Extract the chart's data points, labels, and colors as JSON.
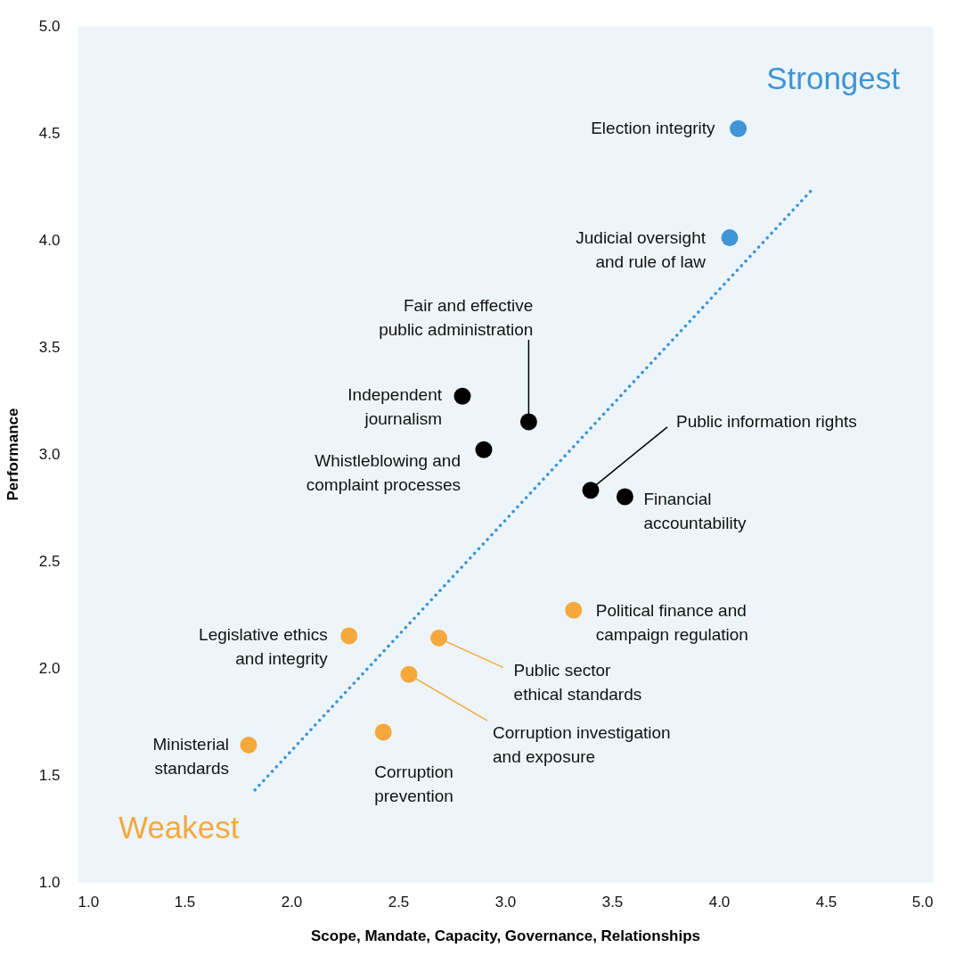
{
  "chart_data": {
    "type": "scatter",
    "xlabel": "Scope, Mandate, Capacity, Governance, Relationships",
    "ylabel": "Performance",
    "xlim": [
      1,
      5
    ],
    "ylim": [
      1,
      5
    ],
    "xticks": [
      {
        "value": 1,
        "label": "1.0"
      },
      {
        "value": 1.5,
        "label": "1.5"
      },
      {
        "value": 2,
        "label": "2.0"
      },
      {
        "value": 2.5,
        "label": "2.5"
      },
      {
        "value": 3,
        "label": "3.0"
      },
      {
        "value": 3.5,
        "label": "3.5"
      },
      {
        "value": 4,
        "label": "4.0"
      },
      {
        "value": 4.5,
        "label": "4.5"
      },
      {
        "value": 5,
        "label": "5.0"
      }
    ],
    "yticks": [
      {
        "value": 1,
        "label": "1.0"
      },
      {
        "value": 1.5,
        "label": "1.5"
      },
      {
        "value": 2,
        "label": "2.0"
      },
      {
        "value": 2.5,
        "label": "2.5"
      },
      {
        "value": 3,
        "label": "3.0"
      },
      {
        "value": 3.5,
        "label": "3.5"
      },
      {
        "value": 4,
        "label": "4.0"
      },
      {
        "value": 4.5,
        "label": "4.5"
      },
      {
        "value": 5,
        "label": "5.0"
      }
    ],
    "grid": false,
    "marker": "circle",
    "series": [
      {
        "color": "#3f95d6",
        "x": [
          4.09,
          4.05
        ],
        "values": [
          4.52,
          4.01
        ]
      },
      {
        "color": "#000000",
        "x": [
          2.8,
          3.11,
          2.9,
          3.4,
          3.56
        ],
        "values": [
          3.27,
          3.15,
          3.02,
          2.83,
          2.8
        ]
      },
      {
        "color": "#f5a83c",
        "x": [
          3.32,
          2.27,
          2.69,
          2.55,
          2.43,
          1.8
        ],
        "values": [
          2.27,
          2.15,
          2.14,
          1.97,
          1.7,
          1.64
        ]
      },
      {
        "type": "line",
        "color": "#3f95d6",
        "line_style": "dotted",
        "marker": "none",
        "x": [
          1.83,
          4.44
        ],
        "values": [
          1.43,
          4.24
        ]
      }
    ],
    "annotations": [
      {
        "text": "Election integrity",
        "x": 4.09,
        "y": 4.52
      },
      {
        "text": "Judicial oversight\nand rule of law",
        "x": 4.05,
        "y": 4.01
      },
      {
        "text": "Fair and effective\npublic administration",
        "x": 3.11,
        "y": 3.15
      },
      {
        "text": "Independent\njournalism",
        "x": 2.8,
        "y": 3.27
      },
      {
        "text": "Whistleblowing and\ncomplaint processes",
        "x": 2.9,
        "y": 3.02
      },
      {
        "text": "Public information rights",
        "x": 3.4,
        "y": 2.83
      },
      {
        "text": "Financial\naccountability",
        "x": 3.56,
        "y": 2.8
      },
      {
        "text": "Political finance and\ncampaign regulation",
        "x": 3.32,
        "y": 2.27
      },
      {
        "text": "Legislative ethics\nand integrity",
        "x": 2.27,
        "y": 2.15
      },
      {
        "text": "Public sector\nethical standards",
        "x": 2.69,
        "y": 2.14
      },
      {
        "text": "Corruption investigation\nand exposure",
        "x": 2.55,
        "y": 1.97
      },
      {
        "text": "Corruption\nprevention",
        "x": 2.43,
        "y": 1.7
      },
      {
        "text": "Ministerial\nstandards",
        "x": 1.8,
        "y": 1.64
      },
      "Strongest",
      "Weakest"
    ]
  }
}
